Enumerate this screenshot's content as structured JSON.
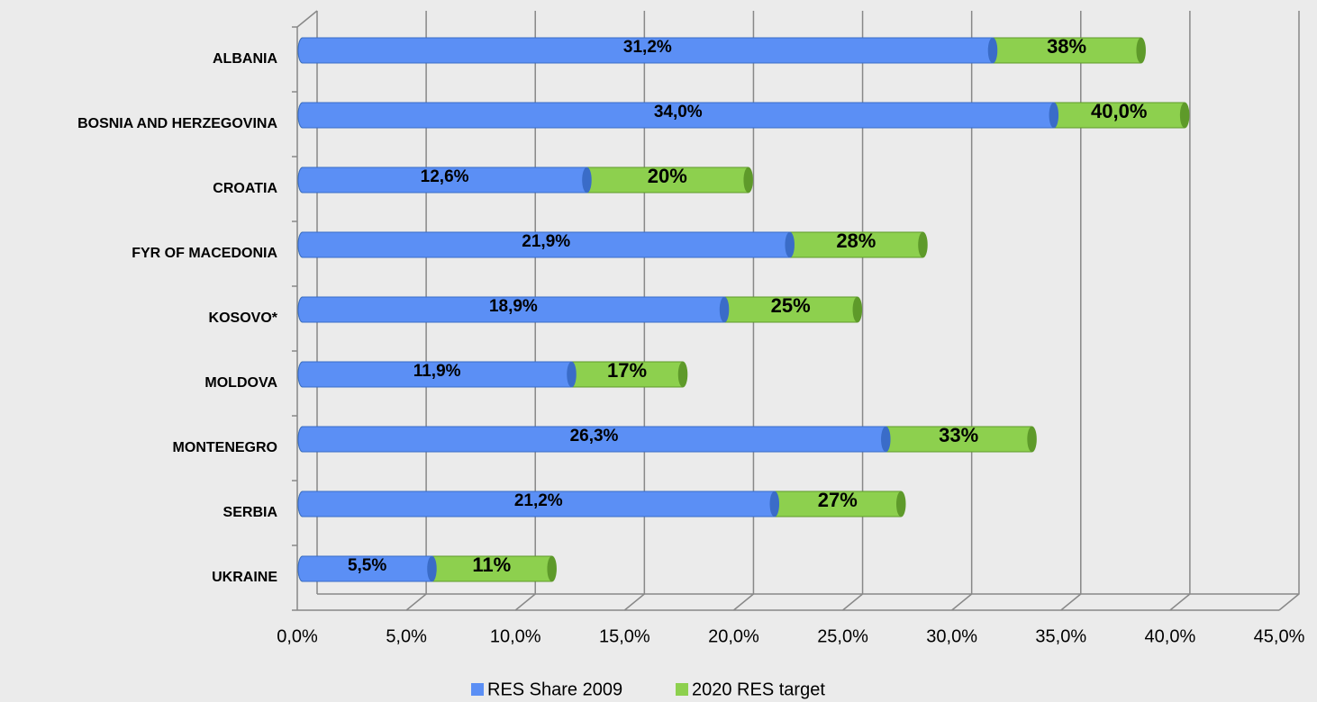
{
  "chart_data": {
    "type": "overlap-bar-horizontal",
    "categories": [
      "ALBANIA",
      "BOSNIA AND HERZEGOVINA",
      "CROATIA",
      "FYR OF MACEDONIA",
      "KOSOVO*",
      "MOLDOVA",
      "MONTENEGRO",
      "SERBIA",
      "UKRAINE"
    ],
    "series": [
      {
        "name": "2020 RES target",
        "color": "#8dd04e",
        "values": [
          38,
          40.0,
          20,
          28,
          25,
          17,
          33,
          27,
          11
        ],
        "value_labels": [
          "38%",
          "40,0%",
          "20%",
          "28%",
          "25%",
          "17%",
          "33%",
          "27%",
          "11%"
        ]
      },
      {
        "name": "RES Share 2009",
        "color": "#5b8ff5",
        "values": [
          31.2,
          34.0,
          12.6,
          21.9,
          18.9,
          11.9,
          26.3,
          21.2,
          5.5
        ],
        "value_labels": [
          "31,2%",
          "34,0%",
          "12,6%",
          "21,9%",
          "18,9%",
          "11,9%",
          "26,3%",
          "21,2%",
          "5,5%"
        ]
      }
    ],
    "xlim": [
      0,
      45
    ],
    "xticks": [
      {
        "value": 0,
        "label": "0,0%"
      },
      {
        "value": 5,
        "label": "5,0%"
      },
      {
        "value": 10,
        "label": "10,0%"
      },
      {
        "value": 15,
        "label": "15,0%"
      },
      {
        "value": 20,
        "label": "20,0%"
      },
      {
        "value": 25,
        "label": "25,0%"
      },
      {
        "value": 30,
        "label": "30,0%"
      },
      {
        "value": 35,
        "label": "35,0%"
      },
      {
        "value": 40,
        "label": "40,0%"
      },
      {
        "value": 45,
        "label": "45,0%"
      }
    ],
    "grid": true
  }
}
